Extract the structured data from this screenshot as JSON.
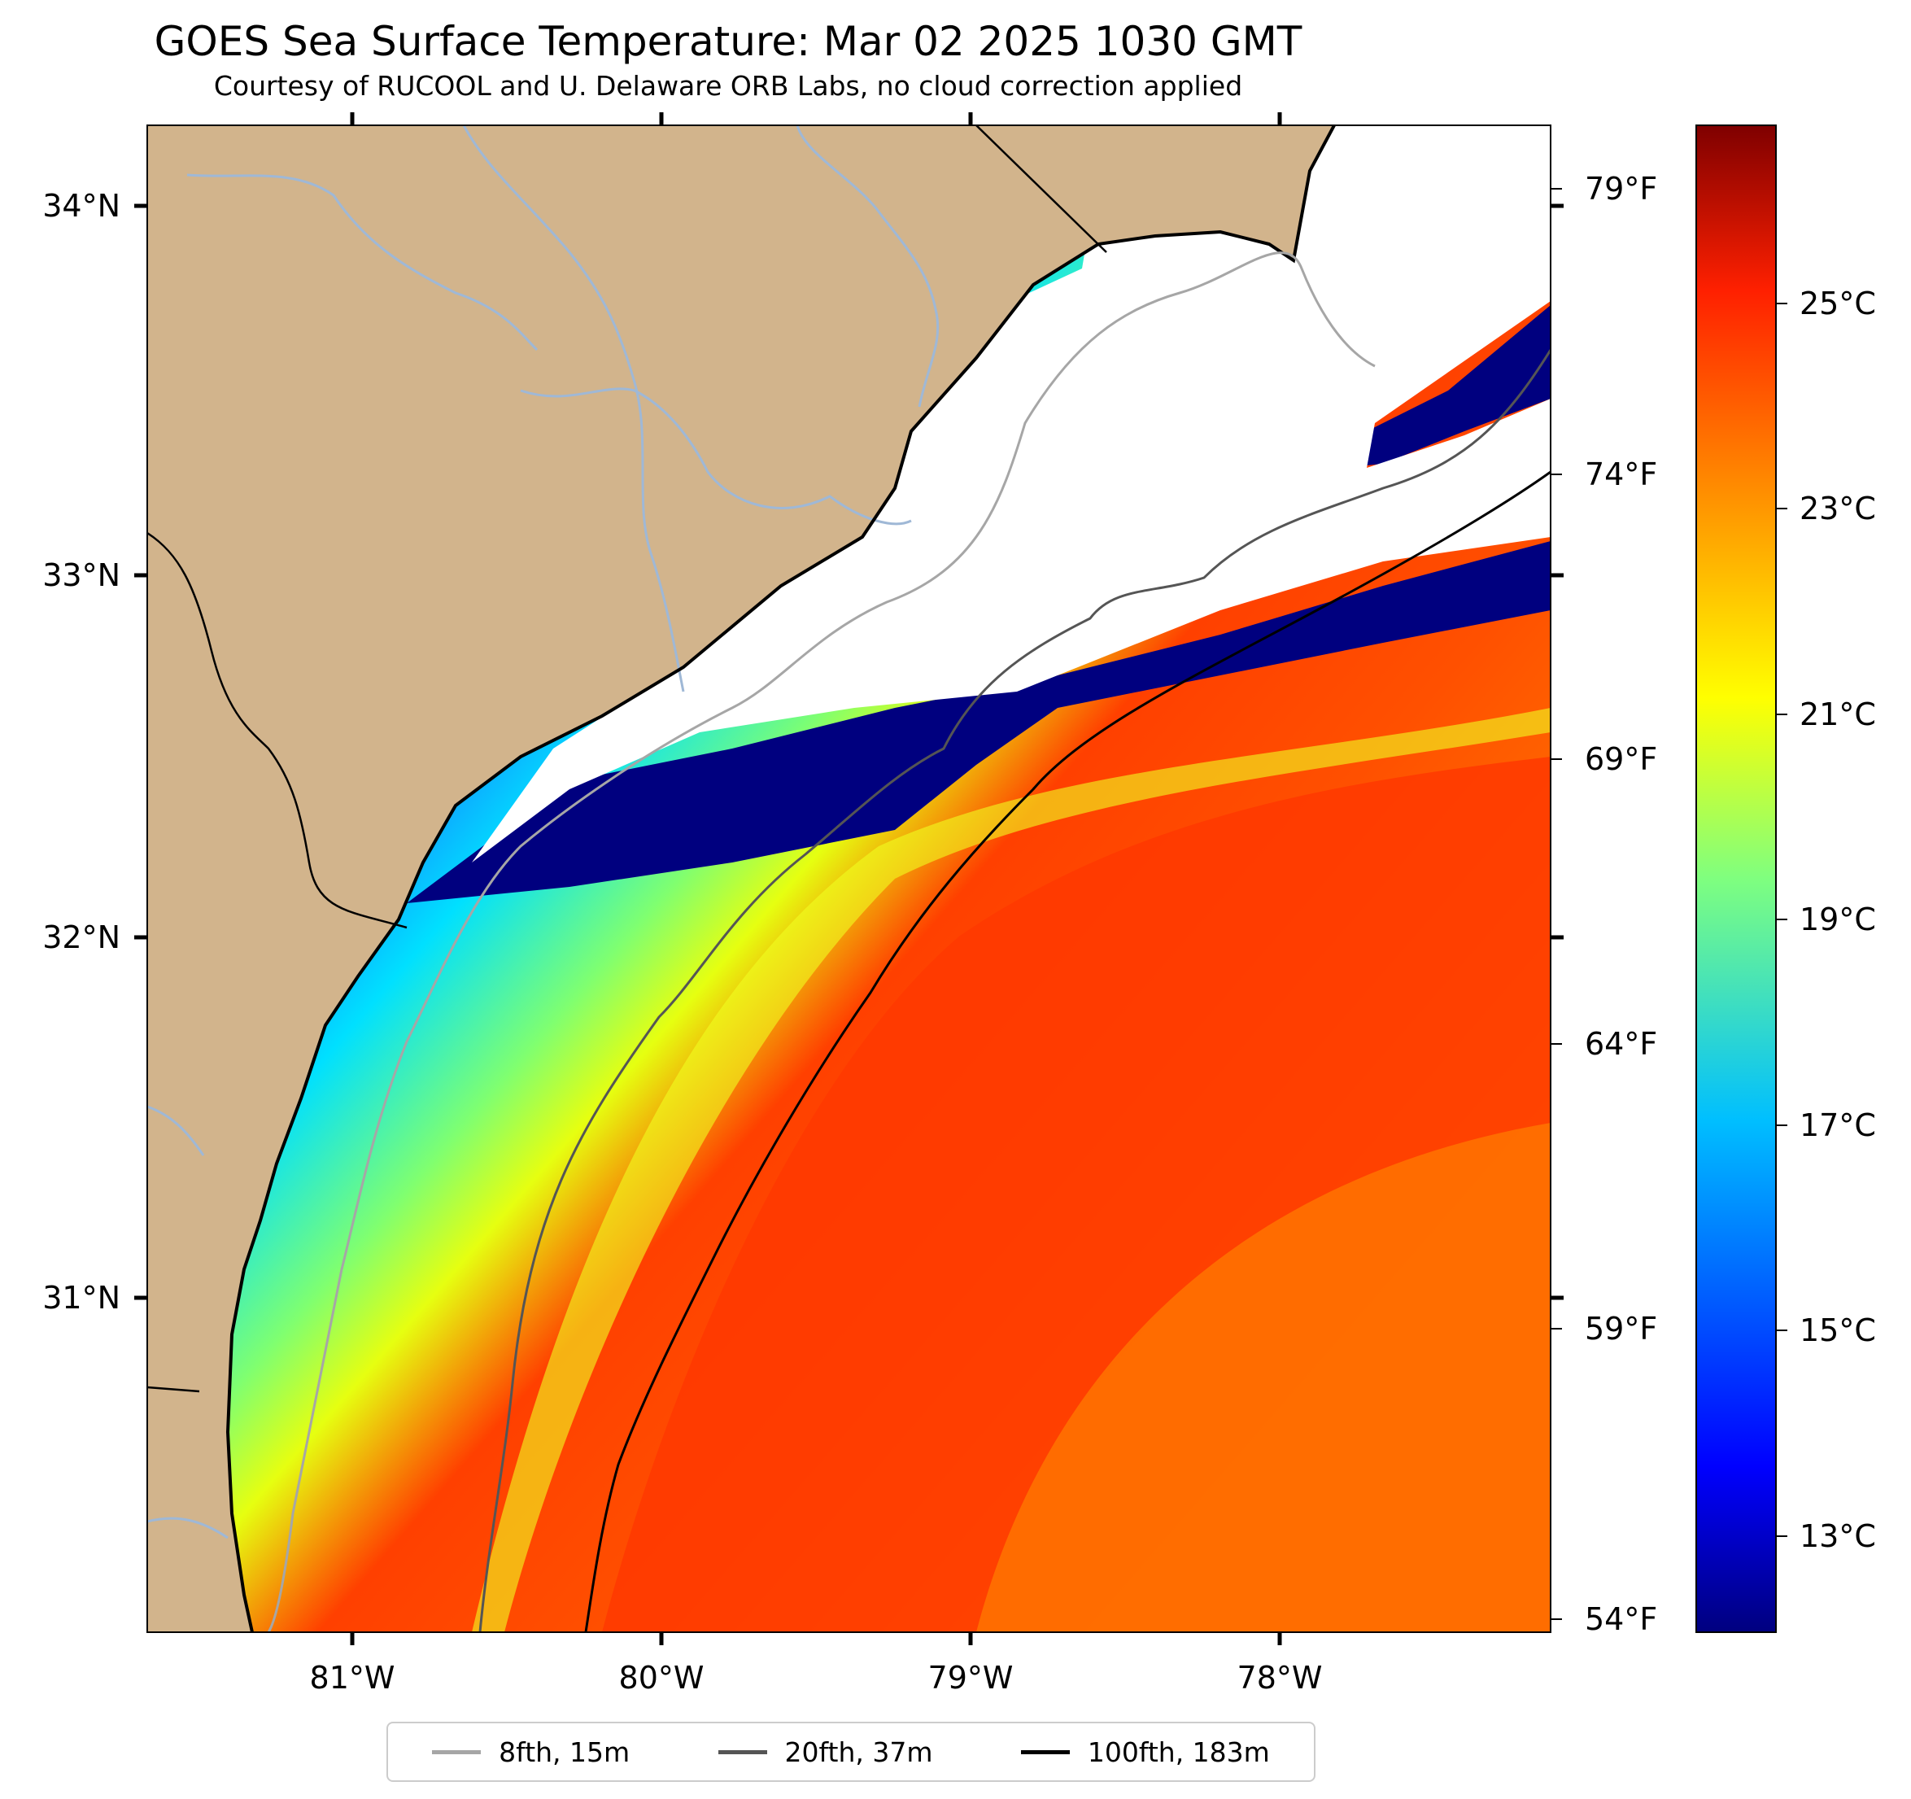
{
  "header": {
    "title": "GOES Sea Surface Temperature: Mar 02 2025 1030 GMT",
    "subtitle": "Courtesy of RUCOOL and U. Delaware ORB Labs, no cloud correction applied"
  },
  "axes": {
    "lon_ticks": [
      "81°W",
      "80°W",
      "79°W",
      "78°W"
    ],
    "lat_ticks": [
      "34°N",
      "33°N",
      "32°N",
      "31°N"
    ],
    "fahrenheit_ticks": [
      "79°F",
      "74°F",
      "69°F",
      "64°F",
      "59°F",
      "54°F"
    ],
    "lon_range": [
      -81.67,
      -77.1
    ],
    "lat_range": [
      30.1,
      34.22
    ]
  },
  "colorbar": {
    "labels": [
      "25°C",
      "23°C",
      "21°C",
      "19°C",
      "17°C",
      "15°C",
      "13°C"
    ],
    "min_c": 12,
    "max_c": 26.8,
    "colormap": "jet"
  },
  "legend": {
    "items": [
      {
        "label": "8fth, 15m",
        "color": "#a6a6a6"
      },
      {
        "label": "20fth, 37m",
        "color": "#555555"
      },
      {
        "label": "100fth, 183m",
        "color": "#000000"
      }
    ]
  },
  "colors": {
    "land": "#d2b48c",
    "rivers": "#9fb8d6",
    "cloud_nodata": "#ffffff"
  }
}
